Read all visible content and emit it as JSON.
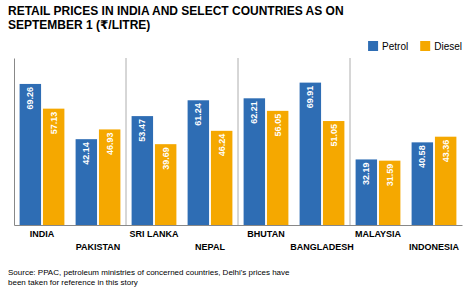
{
  "chart_data": {
    "type": "bar",
    "title": "RETAIL PRICES IN INDIA AND SELECT COUNTRIES AS ON\nSEPTEMBER 1 (₹/LITRE)",
    "categories": [
      "INDIA",
      "PAKISTAN",
      "SRI LANKA",
      "NEPAL",
      "BHUTAN",
      "BANGLADESH",
      "MALAYSIA",
      "INDONESIA"
    ],
    "series": [
      {
        "name": "Petrol",
        "color": "#2E6DB4",
        "values": [
          69.26,
          42.14,
          53.47,
          61.24,
          62.21,
          69.91,
          32.19,
          40.58
        ]
      },
      {
        "name": "Diesel",
        "color": "#F5A800",
        "values": [
          57.13,
          46.93,
          39.69,
          46.24,
          56.05,
          51.05,
          31.59,
          43.36
        ]
      }
    ],
    "ylim": [
      0,
      82
    ],
    "yticks": [],
    "grid": false,
    "legend": "top-right",
    "data_labels": true,
    "tick_labels": "x",
    "annotations": [
      "Source: PPAC, petroleum ministries of concerned countries, Delhi's prices have\nbeen taken for reference in this story"
    ]
  }
}
